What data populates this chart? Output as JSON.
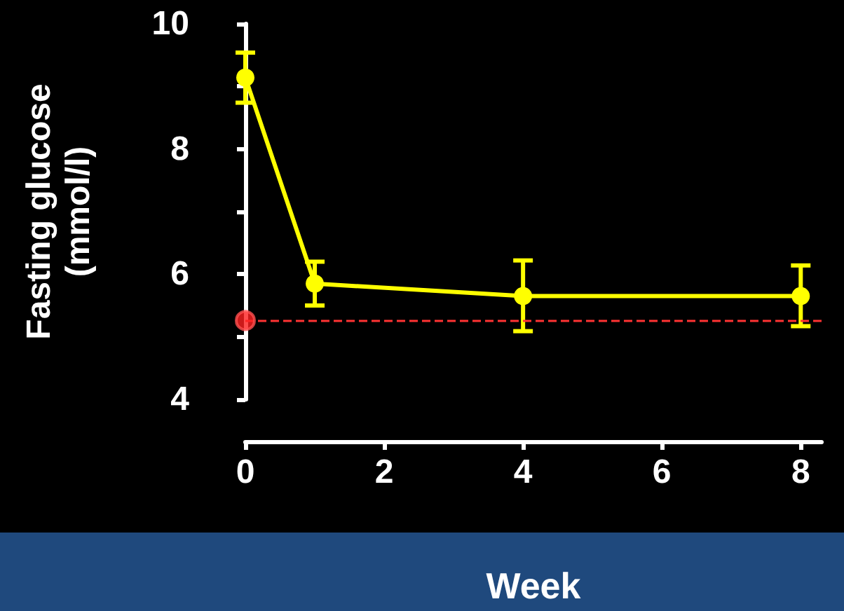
{
  "chart_data": {
    "type": "line",
    "xlabel": "Week",
    "ylabel": "Fasting glucose (mmol/l)",
    "xlim": [
      0,
      8.3
    ],
    "xticks": [
      0,
      2,
      4,
      6,
      8
    ],
    "ylim": [
      4,
      10
    ],
    "yticks": [
      4,
      {
        "value": 5,
        "label": null
      },
      6,
      {
        "value": 7,
        "label": null
      },
      8,
      {
        "value": 9,
        "label": null
      },
      10
    ],
    "grid": false,
    "marker": "circle",
    "line_style": "solid",
    "series": [
      {
        "color": "#ffff00",
        "x": [
          0,
          1,
          4,
          8
        ],
        "values": [
          9.14,
          5.85,
          5.65,
          5.65
        ],
        "errors": [
          [
            8.74,
            9.54
          ],
          [
            5.5,
            6.2
          ],
          [
            5.09,
            6.22
          ],
          [
            5.17,
            6.14
          ]
        ]
      },
      {
        "type": "scatter",
        "color": "#ff2020",
        "x": [
          0
        ],
        "values": [
          5.26
        ]
      }
    ],
    "ref_lines": [
      {
        "axis": "y",
        "value": 5.26,
        "color": "#ff3333",
        "line_style": "dashed"
      }
    ]
  }
}
